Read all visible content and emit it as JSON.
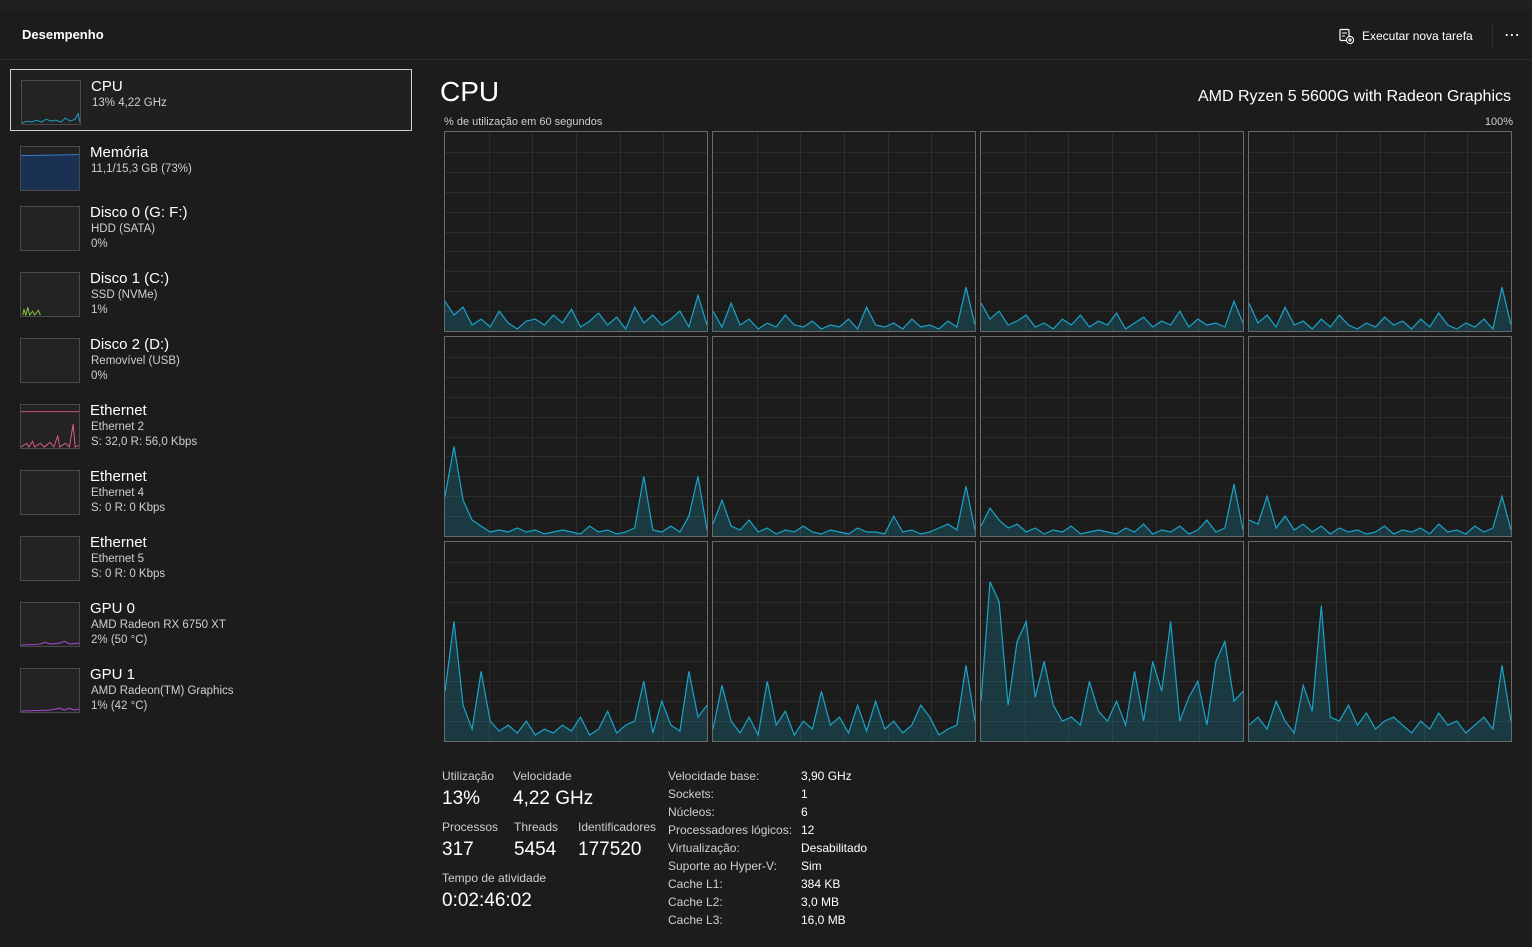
{
  "header": {
    "title": "Desempenho",
    "run_task_label": "Executar nova tarefa",
    "more_label": "⋯"
  },
  "colors": {
    "cpu": "#1aa3c8",
    "memory": "#3a7cd3",
    "disk": "#8cc63f",
    "ethernet": "#e05a8a",
    "gpu": "#b04bd6"
  },
  "sidebar": {
    "items": [
      {
        "title": "CPU",
        "lines": [
          "13% 4,22 GHz"
        ],
        "icon": "cpu-graph"
      },
      {
        "title": "Memória",
        "lines": [
          "11,1/15,3 GB (73%)"
        ],
        "icon": "memory-graph"
      },
      {
        "title": "Disco 0 (G: F:)",
        "lines": [
          "HDD (SATA)",
          "0%"
        ],
        "icon": "disk-graph"
      },
      {
        "title": "Disco 1 (C:)",
        "lines": [
          "SSD (NVMe)",
          "1%"
        ],
        "icon": "disk-graph"
      },
      {
        "title": "Disco 2 (D:)",
        "lines": [
          "Removível (USB)",
          "0%"
        ],
        "icon": "disk-graph"
      },
      {
        "title": "Ethernet",
        "lines": [
          "Ethernet 2",
          "S: 32,0 R: 56,0 Kbps"
        ],
        "icon": "ethernet-graph"
      },
      {
        "title": "Ethernet",
        "lines": [
          "Ethernet 4",
          "S: 0 R: 0 Kbps"
        ],
        "icon": "ethernet-graph"
      },
      {
        "title": "Ethernet",
        "lines": [
          "Ethernet 5",
          "S: 0 R: 0 Kbps"
        ],
        "icon": "ethernet-graph"
      },
      {
        "title": "GPU 0",
        "lines": [
          "AMD Radeon RX 6750 XT",
          "2% (50 °C)"
        ],
        "icon": "gpu-graph"
      },
      {
        "title": "GPU 1",
        "lines": [
          "AMD Radeon(TM) Graphics",
          "1% (42 °C)"
        ],
        "icon": "gpu-graph"
      }
    ]
  },
  "main": {
    "title": "CPU",
    "model": "AMD Ryzen 5 5600G with Radeon Graphics",
    "axis_label": "% de utilização em 60 segundos",
    "axis_max": "100%"
  },
  "stats": {
    "utilization_label": "Utilização",
    "utilization": "13%",
    "speed_label": "Velocidade",
    "speed": "4,22 GHz",
    "processes_label": "Processos",
    "processes": "317",
    "threads_label": "Threads",
    "threads": "5454",
    "handles_label": "Identificadores",
    "handles": "177520",
    "uptime_label": "Tempo de atividade",
    "uptime": "0:02:46:02"
  },
  "info": [
    {
      "key": "Velocidade base:",
      "value": "3,90 GHz"
    },
    {
      "key": "Sockets:",
      "value": "1"
    },
    {
      "key": "Núcleos:",
      "value": "6"
    },
    {
      "key": "Processadores lógicos:",
      "value": "12"
    },
    {
      "key": "Virtualização:",
      "value": "Desabilitado"
    },
    {
      "key": "Suporte ao Hyper-V:",
      "value": "Sim"
    },
    {
      "key": "Cache L1:",
      "value": "384 KB"
    },
    {
      "key": "Cache L2:",
      "value": "3,0 MB"
    },
    {
      "key": "Cache L3:",
      "value": "16,0 MB"
    }
  ],
  "chart_data": {
    "type": "line",
    "ylim": [
      0,
      100
    ],
    "xlim": [
      60,
      0
    ],
    "series": [
      {
        "values": [
          15,
          8,
          12,
          3,
          6,
          2,
          10,
          4,
          1,
          5,
          6,
          3,
          8,
          4,
          11,
          2,
          5,
          9,
          3,
          7,
          1,
          12,
          4,
          8,
          3,
          6,
          10,
          2,
          18,
          3
        ]
      },
      {
        "values": [
          10,
          2,
          14,
          3,
          6,
          1,
          4,
          2,
          8,
          3,
          2,
          5,
          1,
          3,
          2,
          6,
          1,
          12,
          3,
          2,
          4,
          1,
          6,
          2,
          3,
          1,
          5,
          2,
          22,
          3
        ]
      },
      {
        "values": [
          14,
          6,
          10,
          3,
          5,
          8,
          2,
          4,
          1,
          6,
          3,
          8,
          2,
          5,
          3,
          9,
          1,
          4,
          7,
          2,
          5,
          3,
          10,
          2,
          6,
          3,
          4,
          2,
          15,
          4
        ]
      },
      {
        "values": [
          14,
          4,
          8,
          2,
          12,
          3,
          5,
          1,
          6,
          2,
          8,
          3,
          1,
          4,
          2,
          7,
          3,
          5,
          1,
          6,
          2,
          9,
          3,
          1,
          4,
          2,
          6,
          1,
          22,
          3
        ]
      },
      {
        "values": [
          20,
          45,
          18,
          8,
          5,
          2,
          3,
          2,
          4,
          2,
          3,
          1,
          2,
          3,
          2,
          1,
          5,
          2,
          3,
          1,
          2,
          4,
          30,
          3,
          2,
          5,
          2,
          10,
          30,
          3
        ]
      },
      {
        "values": [
          6,
          18,
          5,
          3,
          8,
          2,
          4,
          1,
          3,
          2,
          5,
          2,
          1,
          3,
          2,
          1,
          4,
          2,
          2,
          1,
          10,
          2,
          3,
          1,
          2,
          4,
          6,
          3,
          25,
          3
        ]
      },
      {
        "values": [
          5,
          14,
          8,
          4,
          6,
          2,
          4,
          1,
          3,
          2,
          5,
          1,
          2,
          3,
          2,
          1,
          4,
          2,
          6,
          1,
          3,
          2,
          5,
          1,
          3,
          8,
          2,
          4,
          26,
          3
        ]
      },
      {
        "values": [
          8,
          6,
          20,
          4,
          10,
          3,
          6,
          2,
          5,
          1,
          4,
          2,
          3,
          1,
          2,
          5,
          1,
          3,
          2,
          4,
          1,
          6,
          2,
          3,
          1,
          5,
          2,
          4,
          20,
          3
        ]
      },
      {
        "values": [
          25,
          60,
          18,
          6,
          35,
          10,
          5,
          8,
          4,
          10,
          3,
          6,
          4,
          8,
          5,
          12,
          3,
          6,
          15,
          4,
          8,
          10,
          30,
          4,
          20,
          8,
          5,
          35,
          12,
          18
        ]
      },
      {
        "values": [
          6,
          28,
          10,
          4,
          12,
          3,
          30,
          8,
          15,
          3,
          10,
          6,
          25,
          8,
          12,
          4,
          18,
          5,
          20,
          6,
          10,
          4,
          8,
          18,
          12,
          3,
          6,
          8,
          38,
          10
        ]
      },
      {
        "values": [
          20,
          80,
          70,
          18,
          50,
          60,
          22,
          40,
          18,
          10,
          12,
          8,
          30,
          15,
          10,
          20,
          8,
          35,
          10,
          40,
          25,
          60,
          10,
          22,
          30,
          8,
          40,
          50,
          20,
          25
        ]
      },
      {
        "values": [
          8,
          12,
          6,
          20,
          10,
          4,
          28,
          15,
          68,
          12,
          10,
          18,
          8,
          14,
          6,
          10,
          12,
          8,
          4,
          10,
          6,
          14,
          8,
          10,
          4,
          8,
          12,
          6,
          38,
          10
        ]
      }
    ]
  }
}
